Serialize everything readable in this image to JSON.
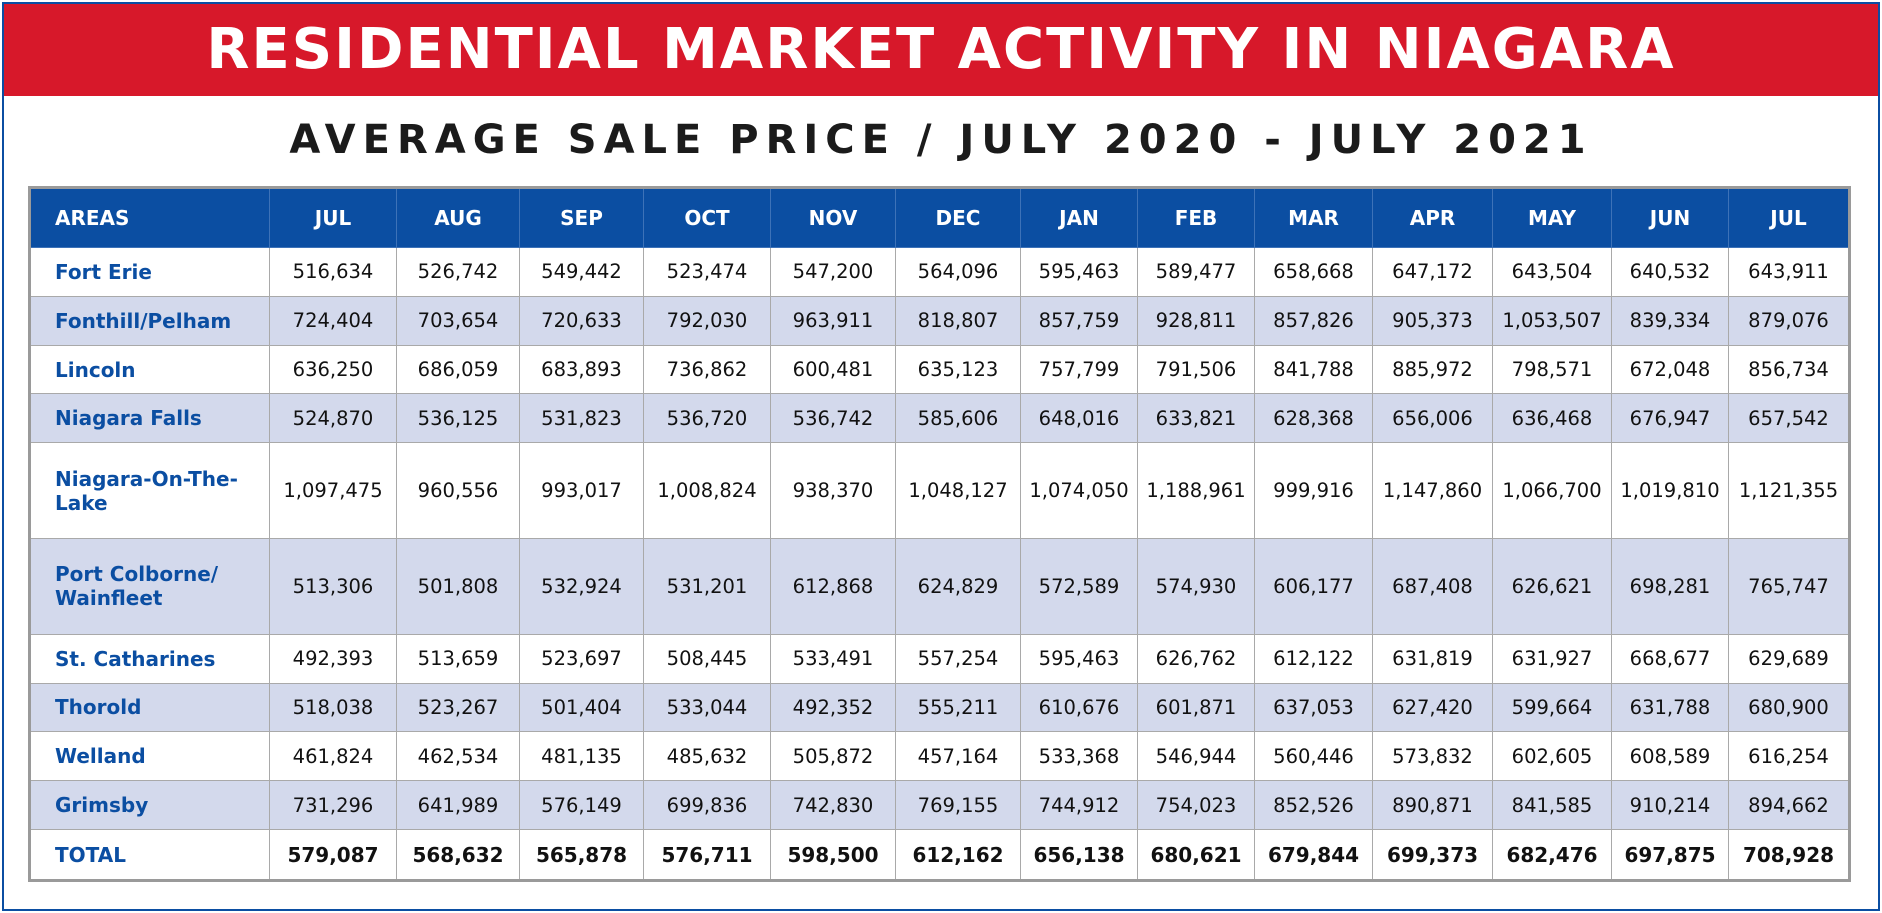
{
  "title": "RESIDENTIAL MARKET ACTIVITY IN NIAGARA",
  "subtitle": "AVERAGE SALE PRICE / JULY 2020 - JULY 2021",
  "table": {
    "headers": [
      "AREAS",
      "JUL",
      "AUG",
      "SEP",
      "OCT",
      "NOV",
      "DEC",
      "JAN",
      "FEB",
      "MAR",
      "APR",
      "MAY",
      "JUN",
      "JUL"
    ],
    "rows": [
      {
        "area": "Fort Erie",
        "values": [
          "516,634",
          "526,742",
          "549,442",
          "523,474",
          "547,200",
          "564,096",
          "595,463",
          "589,477",
          "658,668",
          "647,172",
          "643,504",
          "640,532",
          "643,911"
        ]
      },
      {
        "area": "Fonthill/Pelham",
        "values": [
          "724,404",
          "703,654",
          "720,633",
          "792,030",
          "963,911",
          "818,807",
          "857,759",
          "928,811",
          "857,826",
          "905,373",
          "1,053,507",
          "839,334",
          "879,076"
        ]
      },
      {
        "area": "Lincoln",
        "values": [
          "636,250",
          "686,059",
          "683,893",
          "736,862",
          "600,481",
          "635,123",
          "757,799",
          "791,506",
          "841,788",
          "885,972",
          "798,571",
          "672,048",
          "856,734"
        ]
      },
      {
        "area": "Niagara Falls",
        "values": [
          "524,870",
          "536,125",
          "531,823",
          "536,720",
          "536,742",
          "585,606",
          "648,016",
          "633,821",
          "628,368",
          "656,006",
          "636,468",
          "676,947",
          "657,542"
        ]
      },
      {
        "area": "Niagara-On-The-Lake",
        "values": [
          "1,097,475",
          "960,556",
          "993,017",
          "1,008,824",
          "938,370",
          "1,048,127",
          "1,074,050",
          "1,188,961",
          "999,916",
          "1,147,860",
          "1,066,700",
          "1,019,810",
          "1,121,355"
        ]
      },
      {
        "area": "Port Colborne/ Wainfleet",
        "values": [
          "513,306",
          "501,808",
          "532,924",
          "531,201",
          "612,868",
          "624,829",
          "572,589",
          "574,930",
          "606,177",
          "687,408",
          "626,621",
          "698,281",
          "765,747"
        ]
      },
      {
        "area": "St. Catharines",
        "values": [
          "492,393",
          "513,659",
          "523,697",
          "508,445",
          "533,491",
          "557,254",
          "595,463",
          "626,762",
          "612,122",
          "631,819",
          "631,927",
          "668,677",
          "629,689"
        ]
      },
      {
        "area": "Thorold",
        "values": [
          "518,038",
          "523,267",
          "501,404",
          "533,044",
          "492,352",
          "555,211",
          "610,676",
          "601,871",
          "637,053",
          "627,420",
          "599,664",
          "631,788",
          "680,900"
        ]
      },
      {
        "area": "Welland",
        "values": [
          "461,824",
          "462,534",
          "481,135",
          "485,632",
          "505,872",
          "457,164",
          "533,368",
          "546,944",
          "560,446",
          "573,832",
          "602,605",
          "608,589",
          "616,254"
        ]
      },
      {
        "area": "Grimsby",
        "values": [
          "731,296",
          "641,989",
          "576,149",
          "699,836",
          "742,830",
          "769,155",
          "744,912",
          "754,023",
          "852,526",
          "890,871",
          "841,585",
          "910,214",
          "894,662"
        ]
      }
    ],
    "total": {
      "area": "TOTAL",
      "values": [
        "579,087",
        "568,632",
        "565,878",
        "576,711",
        "598,500",
        "612,162",
        "656,138",
        "680,621",
        "679,844",
        "699,373",
        "682,476",
        "697,875",
        "708,928"
      ]
    }
  },
  "colors": {
    "banner": "#d7182a",
    "header": "#0b4ea2",
    "stripe": "#d3d9ec",
    "area_text": "#0b4ea2"
  }
}
